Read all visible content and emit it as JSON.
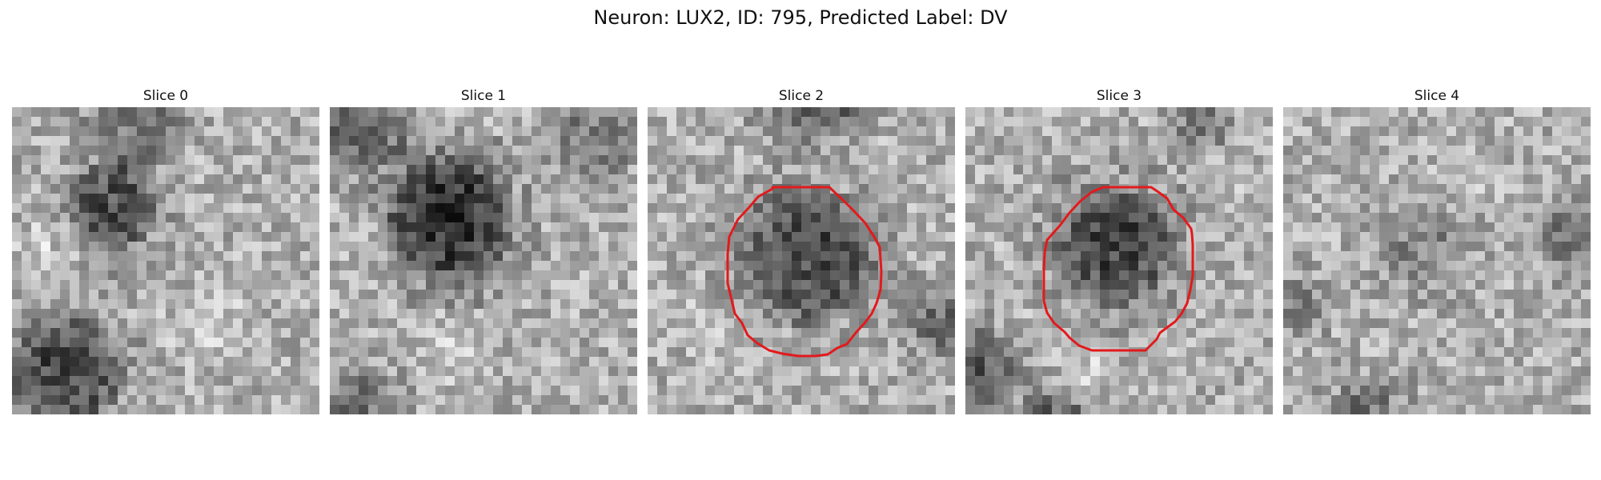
{
  "figure": {
    "title": "Neuron: LUX2, ID: 795, Predicted Label: DV"
  },
  "slices": [
    {
      "title": "Slice 0",
      "has_roi_outline": false,
      "mask_grid": 32
    },
    {
      "title": "Slice 1",
      "has_roi_outline": false,
      "mask_grid": 32
    },
    {
      "title": "Slice 2",
      "has_roi_outline": true,
      "mask_grid": 32
    },
    {
      "title": "Slice 3",
      "has_roi_outline": true,
      "mask_grid": 32
    },
    {
      "title": "Slice 4",
      "has_roi_outline": false,
      "mask_grid": 32
    }
  ],
  "colors": {
    "roi_outline": "#e31a1c",
    "colormap": "gray"
  }
}
